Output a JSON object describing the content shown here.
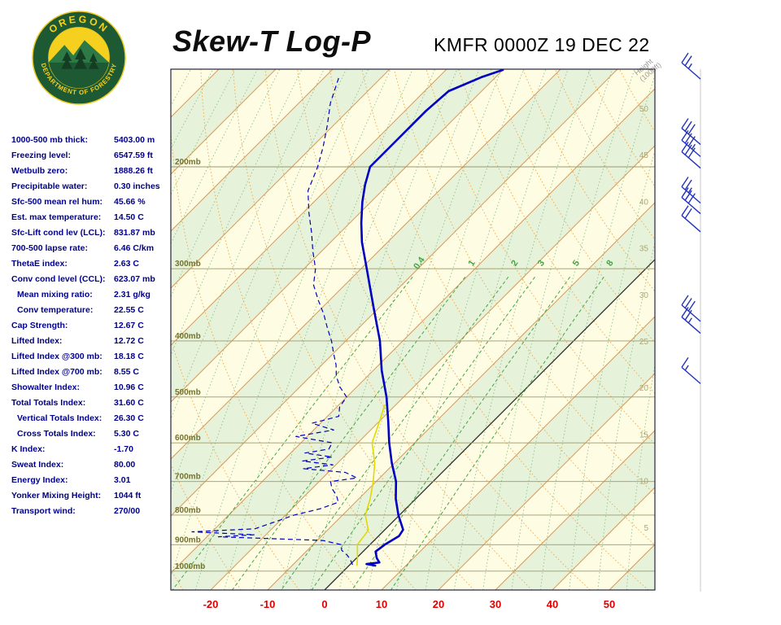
{
  "header": {
    "title": "Skew-T Log-P",
    "station": "KMFR 0000Z 19 DEC 22"
  },
  "logo": {
    "top_text": "OREGON",
    "bottom_text": "DEPARTMENT OF FORESTRY"
  },
  "indices": [
    {
      "label": "1000-500 mb thick:",
      "value": "5403.00 m",
      "indent": false
    },
    {
      "label": "Freezing level:",
      "value": "6547.59 ft",
      "indent": false
    },
    {
      "label": "Wetbulb zero:",
      "value": "1888.26 ft",
      "indent": false
    },
    {
      "label": "Precipitable water:",
      "value": "0.30 inches",
      "indent": false
    },
    {
      "label": "Sfc-500 mean rel hum:",
      "value": "45.66 %",
      "indent": false
    },
    {
      "label": "Est. max temperature:",
      "value": "14.50 C",
      "indent": false
    },
    {
      "label": "Sfc-Lift cond lev (LCL):",
      "value": "831.87 mb",
      "indent": false
    },
    {
      "label": "700-500 lapse rate:",
      "value": "6.46 C/km",
      "indent": false
    },
    {
      "label": "ThetaE index:",
      "value": "2.63 C",
      "indent": false
    },
    {
      "label": "Conv cond level (CCL):",
      "value": "623.07 mb",
      "indent": false
    },
    {
      "label": "Mean mixing ratio:",
      "value": "2.31 g/kg",
      "indent": true
    },
    {
      "label": "Conv temperature:",
      "value": "22.55 C",
      "indent": true
    },
    {
      "label": "Cap Strength:",
      "value": "12.67 C",
      "indent": false
    },
    {
      "label": "Lifted Index:",
      "value": "12.72 C",
      "indent": false
    },
    {
      "label": "Lifted Index @300 mb:",
      "value": "18.18 C",
      "indent": false
    },
    {
      "label": "Lifted Index @700 mb:",
      "value": "8.55 C",
      "indent": false
    },
    {
      "label": "Showalter Index:",
      "value": "10.96 C",
      "indent": false
    },
    {
      "label": "Total Totals Index:",
      "value": "31.60 C",
      "indent": false
    },
    {
      "label": "Vertical Totals Index:",
      "value": "26.30 C",
      "indent": true
    },
    {
      "label": "Cross Totals Index:",
      "value": "5.30 C",
      "indent": true
    },
    {
      "label": "K Index:",
      "value": "-1.70",
      "indent": false
    },
    {
      "label": "Sweat Index:",
      "value": "80.00",
      "indent": false
    },
    {
      "label": "Energy Index:",
      "value": "3.01",
      "indent": false
    },
    {
      "label": "Yonker Mixing Height:",
      "value": "1044 ft",
      "indent": false
    },
    {
      "label": "Transport wind:",
      "value": "270/00",
      "indent": false
    }
  ],
  "chart_data": {
    "type": "skew-t-log-p",
    "pressure_axis": {
      "scale": "log",
      "levels_mb": [
        200,
        300,
        400,
        500,
        600,
        700,
        800,
        900,
        1000
      ],
      "label_suffix": "mb",
      "top_mb": 136,
      "bottom_mb": 1078
    },
    "temp_axis": {
      "ticks_c": [
        -20,
        -10,
        0,
        10,
        20,
        30,
        40,
        50
      ],
      "skew_deg": 45,
      "label_color": "#e00000"
    },
    "height_axis": {
      "title": "Height (1000ft)",
      "ticks_kft": [
        50,
        45,
        40,
        35,
        30,
        25,
        20,
        15,
        10,
        5
      ]
    },
    "mixing_ratio_lines_gkg": [
      0.4,
      1,
      2,
      3,
      5,
      8
    ],
    "isotherm_step_c": 10,
    "series": {
      "temperature_c": [
        [
          978,
          4.6
        ],
        [
          972,
          2.8
        ],
        [
          966,
          4.8
        ],
        [
          950,
          3.6
        ],
        [
          925,
          2.2
        ],
        [
          900,
          2.6
        ],
        [
          870,
          3.6
        ],
        [
          848,
          3.2
        ],
        [
          800,
          -0.2
        ],
        [
          750,
          -3.5
        ],
        [
          700,
          -6.5
        ],
        [
          650,
          -10.5
        ],
        [
          600,
          -14.5
        ],
        [
          550,
          -18.5
        ],
        [
          500,
          -23.0
        ],
        [
          450,
          -28.5
        ],
        [
          400,
          -34.0
        ],
        [
          350,
          -41.0
        ],
        [
          300,
          -49.0
        ],
        [
          270,
          -54.5
        ],
        [
          250,
          -58.0
        ],
        [
          230,
          -61.5
        ],
        [
          215,
          -64.0
        ],
        [
          200,
          -66.3
        ],
        [
          180,
          -66.3
        ],
        [
          160,
          -66.3
        ],
        [
          148,
          -65.8
        ],
        [
          140,
          -62.5
        ],
        [
          136,
          -60.0
        ]
      ],
      "dewpoint_c": [
        [
          975,
          0.5
        ],
        [
          960,
          -0.5
        ],
        [
          940,
          -2.0
        ],
        [
          920,
          -4.0
        ],
        [
          900,
          -5.0
        ],
        [
          885,
          -9.0
        ],
        [
          872,
          -28.0
        ],
        [
          865,
          -22.0
        ],
        [
          855,
          -33.5
        ],
        [
          845,
          -23.0
        ],
        [
          830,
          -21.5
        ],
        [
          815,
          -20.0
        ],
        [
          800,
          -18.5
        ],
        [
          780,
          -15.0
        ],
        [
          760,
          -13.0
        ],
        [
          740,
          -14.5
        ],
        [
          720,
          -16.5
        ],
        [
          700,
          -18.0
        ],
        [
          690,
          -14.0
        ],
        [
          675,
          -17.0
        ],
        [
          665,
          -25.0
        ],
        [
          655,
          -20.5
        ],
        [
          645,
          -26.5
        ],
        [
          635,
          -22.0
        ],
        [
          625,
          -27.5
        ],
        [
          615,
          -24.0
        ],
        [
          600,
          -24.5
        ],
        [
          585,
          -32.0
        ],
        [
          570,
          -26.5
        ],
        [
          555,
          -31.5
        ],
        [
          540,
          -28.0
        ],
        [
          520,
          -29.5
        ],
        [
          500,
          -30.0
        ],
        [
          480,
          -33.0
        ],
        [
          460,
          -35.5
        ],
        [
          440,
          -37.5
        ],
        [
          420,
          -40.0
        ],
        [
          400,
          -42.5
        ],
        [
          380,
          -45.5
        ],
        [
          360,
          -48.5
        ],
        [
          340,
          -52.0
        ],
        [
          320,
          -55.5
        ],
        [
          300,
          -58.0
        ],
        [
          280,
          -61.5
        ],
        [
          260,
          -65.0
        ],
        [
          240,
          -69.0
        ],
        [
          220,
          -73.0
        ],
        [
          200,
          -75.5
        ],
        [
          185,
          -78.0
        ],
        [
          170,
          -81.0
        ],
        [
          155,
          -84.5
        ],
        [
          140,
          -87.5
        ]
      ],
      "wetbulb_c": [
        [
          978,
          1.4
        ],
        [
          950,
          0.2
        ],
        [
          900,
          -2.2
        ],
        [
          850,
          -2.8
        ],
        [
          800,
          -6.0
        ],
        [
          750,
          -8.0
        ],
        [
          700,
          -10.5
        ],
        [
          650,
          -13.5
        ],
        [
          600,
          -17.5
        ],
        [
          550,
          -20.0
        ],
        [
          515,
          -22.0
        ]
      ]
    },
    "wind_barbs": [
      {
        "p_mb": 141,
        "speed_kt": 25
      },
      {
        "p_mb": 183,
        "speed_kt": 30
      },
      {
        "p_mb": 192,
        "speed_kt": 35
      },
      {
        "p_mb": 201,
        "speed_kt": 30
      },
      {
        "p_mb": 231,
        "speed_kt": 25
      },
      {
        "p_mb": 241,
        "speed_kt": 30
      },
      {
        "p_mb": 259,
        "speed_kt": 20
      },
      {
        "p_mb": 370,
        "speed_kt": 30
      },
      {
        "p_mb": 388,
        "speed_kt": 25
      },
      {
        "p_mb": 474,
        "speed_kt": 15
      }
    ],
    "colors": {
      "background": "#fffce4",
      "band_green": "#e7f2da",
      "isotherm": "#ef9440",
      "zero_isotherm": "#2b2b2b",
      "dry_adiabat": "#eda543",
      "moist_adiabat": "#8cc48c",
      "mixing_ratio": "#46a546",
      "pressure_line": "#9a9a6e",
      "pressure_label": "#73732d",
      "height_label": "#a8a878",
      "temperature_line": "#0000c0",
      "dewpoint_line": "#0000c0",
      "wetbulb_line": "#e0da00",
      "wind_barb": "#2233bb",
      "frame": "#23233c",
      "axis_title": "#9a9a9a"
    }
  }
}
